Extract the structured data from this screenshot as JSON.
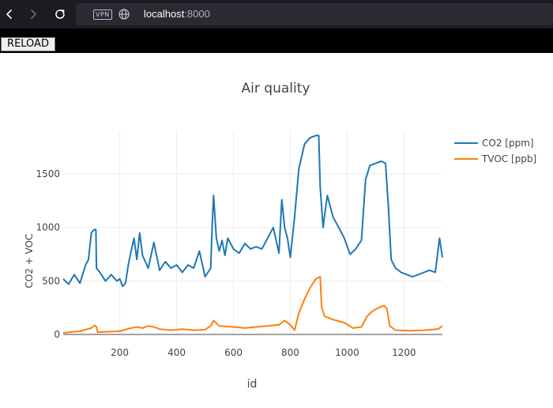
{
  "browser": {
    "back_icon": "chevron-left-icon",
    "forward_icon": "chevron-right-icon",
    "reload_icon": "reload-icon",
    "vpn_label": "VPN",
    "site_icon": "globe-icon",
    "url_host": "localhost",
    "url_port": ":8000"
  },
  "page": {
    "reload_button_label": "RELOAD"
  },
  "chart_data": {
    "type": "line",
    "title": "Air quality",
    "xlabel": "id",
    "ylabel": "CO2 + VOC",
    "xlim": [
      1,
      1335
    ],
    "ylim": [
      0,
      1900
    ],
    "x_ticks": [
      200,
      400,
      600,
      800,
      1000,
      1200
    ],
    "y_ticks": [
      0,
      500,
      1000,
      1500
    ],
    "grid": true,
    "legend_position": "top-right",
    "series": [
      {
        "name": "CO2 [ppm]",
        "color": "#1f77b4",
        "points": [
          [
            1,
            520
          ],
          [
            20,
            470
          ],
          [
            40,
            560
          ],
          [
            60,
            480
          ],
          [
            80,
            650
          ],
          [
            90,
            700
          ],
          [
            100,
            950
          ],
          [
            110,
            980
          ],
          [
            116,
            980
          ],
          [
            118,
            620
          ],
          [
            130,
            580
          ],
          [
            150,
            500
          ],
          [
            170,
            560
          ],
          [
            190,
            500
          ],
          [
            200,
            520
          ],
          [
            210,
            450
          ],
          [
            220,
            480
          ],
          [
            230,
            650
          ],
          [
            240,
            780
          ],
          [
            250,
            900
          ],
          [
            260,
            700
          ],
          [
            270,
            950
          ],
          [
            280,
            740
          ],
          [
            300,
            620
          ],
          [
            320,
            860
          ],
          [
            340,
            600
          ],
          [
            360,
            680
          ],
          [
            380,
            620
          ],
          [
            400,
            650
          ],
          [
            420,
            580
          ],
          [
            440,
            650
          ],
          [
            460,
            620
          ],
          [
            480,
            780
          ],
          [
            500,
            540
          ],
          [
            520,
            620
          ],
          [
            525,
            1000
          ],
          [
            530,
            1300
          ],
          [
            540,
            900
          ],
          [
            550,
            780
          ],
          [
            560,
            880
          ],
          [
            570,
            740
          ],
          [
            580,
            900
          ],
          [
            600,
            800
          ],
          [
            620,
            760
          ],
          [
            640,
            850
          ],
          [
            660,
            800
          ],
          [
            680,
            820
          ],
          [
            700,
            800
          ],
          [
            720,
            900
          ],
          [
            740,
            1000
          ],
          [
            760,
            760
          ],
          [
            770,
            1260
          ],
          [
            780,
            1000
          ],
          [
            790,
            900
          ],
          [
            800,
            720
          ],
          [
            815,
            1100
          ],
          [
            830,
            1550
          ],
          [
            850,
            1780
          ],
          [
            870,
            1840
          ],
          [
            890,
            1860
          ],
          [
            900,
            1860
          ],
          [
            905,
            1380
          ],
          [
            915,
            1000
          ],
          [
            930,
            1300
          ],
          [
            950,
            1100
          ],
          [
            970,
            1000
          ],
          [
            990,
            900
          ],
          [
            1010,
            750
          ],
          [
            1030,
            800
          ],
          [
            1050,
            880
          ],
          [
            1065,
            1450
          ],
          [
            1080,
            1580
          ],
          [
            1100,
            1600
          ],
          [
            1120,
            1620
          ],
          [
            1135,
            1600
          ],
          [
            1145,
            1200
          ],
          [
            1155,
            700
          ],
          [
            1170,
            620
          ],
          [
            1190,
            580
          ],
          [
            1210,
            560
          ],
          [
            1230,
            540
          ],
          [
            1250,
            560
          ],
          [
            1270,
            580
          ],
          [
            1290,
            600
          ],
          [
            1310,
            580
          ],
          [
            1325,
            900
          ],
          [
            1335,
            720
          ]
        ]
      },
      {
        "name": "TVOC [ppb]",
        "color": "#ff7f0e",
        "points": [
          [
            1,
            15
          ],
          [
            20,
            20
          ],
          [
            40,
            25
          ],
          [
            60,
            30
          ],
          [
            80,
            45
          ],
          [
            100,
            60
          ],
          [
            112,
            85
          ],
          [
            118,
            70
          ],
          [
            122,
            20
          ],
          [
            150,
            25
          ],
          [
            200,
            30
          ],
          [
            240,
            60
          ],
          [
            260,
            70
          ],
          [
            280,
            60
          ],
          [
            300,
            80
          ],
          [
            320,
            70
          ],
          [
            340,
            50
          ],
          [
            380,
            40
          ],
          [
            420,
            50
          ],
          [
            460,
            40
          ],
          [
            500,
            45
          ],
          [
            520,
            80
          ],
          [
            530,
            130
          ],
          [
            550,
            80
          ],
          [
            600,
            70
          ],
          [
            640,
            60
          ],
          [
            680,
            70
          ],
          [
            720,
            80
          ],
          [
            760,
            90
          ],
          [
            780,
            130
          ],
          [
            800,
            90
          ],
          [
            815,
            40
          ],
          [
            830,
            200
          ],
          [
            850,
            330
          ],
          [
            870,
            440
          ],
          [
            890,
            520
          ],
          [
            905,
            540
          ],
          [
            910,
            260
          ],
          [
            920,
            170
          ],
          [
            950,
            140
          ],
          [
            990,
            110
          ],
          [
            1020,
            60
          ],
          [
            1050,
            70
          ],
          [
            1070,
            170
          ],
          [
            1090,
            220
          ],
          [
            1110,
            250
          ],
          [
            1130,
            270
          ],
          [
            1140,
            240
          ],
          [
            1150,
            80
          ],
          [
            1170,
            40
          ],
          [
            1220,
            35
          ],
          [
            1270,
            40
          ],
          [
            1320,
            50
          ],
          [
            1335,
            80
          ]
        ]
      }
    ]
  }
}
